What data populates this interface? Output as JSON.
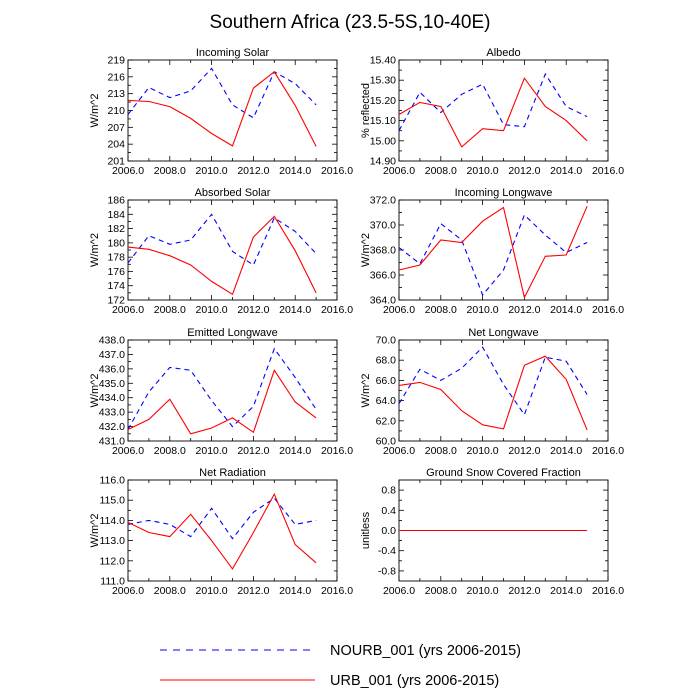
{
  "figure_title": "Southern Africa (23.5-5S,10-40E)",
  "colors": {
    "nourb": "#0000ff",
    "urb": "#ff0000",
    "axes": "#000000"
  },
  "legend": [
    {
      "label": "NOURB_001 (yrs 2006-2015)",
      "style": "dashed",
      "color": "#0000ff"
    },
    {
      "label": "URB_001 (yrs 2006-2015)",
      "style": "solid",
      "color": "#ff0000"
    }
  ],
  "chart_data": [
    {
      "type": "line",
      "title": "Incoming Solar",
      "ylabel": "W/m^2",
      "xlim": [
        2006,
        2016
      ],
      "xticks": [
        "2006.0",
        "2008.0",
        "2010.0",
        "2012.0",
        "2014.0",
        "2016.0"
      ],
      "ylim": [
        201,
        219
      ],
      "yticks": [
        "201",
        "204",
        "207",
        "210",
        "213",
        "216",
        "219"
      ],
      "x": [
        2006,
        2007,
        2008,
        2009,
        2010,
        2011,
        2012,
        2013,
        2014,
        2015
      ],
      "series": [
        {
          "name": "NOURB_001",
          "values": [
            209.3,
            214.1,
            212.3,
            213.5,
            217.5,
            211.0,
            208.7,
            216.9,
            214.8,
            211.0
          ]
        },
        {
          "name": "URB_001",
          "values": [
            211.8,
            211.6,
            210.7,
            208.6,
            205.9,
            203.7,
            214.0,
            216.9,
            210.9,
            203.6
          ]
        }
      ]
    },
    {
      "type": "line",
      "title": "Albedo",
      "ylabel": "% reflected",
      "xlim": [
        2006,
        2016
      ],
      "xticks": [
        "2006.0",
        "2008.0",
        "2010.0",
        "2012.0",
        "2014.0",
        "2016.0"
      ],
      "ylim": [
        14.9,
        15.4
      ],
      "yticks": [
        "14.90",
        "15.00",
        "15.10",
        "15.20",
        "15.30",
        "15.40"
      ],
      "x": [
        2006,
        2007,
        2008,
        2009,
        2010,
        2011,
        2012,
        2013,
        2014,
        2015
      ],
      "series": [
        {
          "name": "NOURB_001",
          "values": [
            15.05,
            15.24,
            15.14,
            15.23,
            15.28,
            15.08,
            15.07,
            15.33,
            15.17,
            15.12
          ]
        },
        {
          "name": "URB_001",
          "values": [
            15.13,
            15.19,
            15.17,
            14.97,
            15.06,
            15.05,
            15.31,
            15.17,
            15.1,
            15.0
          ]
        }
      ]
    },
    {
      "type": "line",
      "title": "Absorbed Solar",
      "ylabel": "W/m^2",
      "xlim": [
        2006,
        2016
      ],
      "xticks": [
        "2006.0",
        "2008.0",
        "2010.0",
        "2012.0",
        "2014.0",
        "2016.0"
      ],
      "ylim": [
        172,
        186
      ],
      "yticks": [
        "172",
        "174",
        "176",
        "178",
        "180",
        "182",
        "184",
        "186"
      ],
      "x": [
        2006,
        2007,
        2008,
        2009,
        2010,
        2011,
        2012,
        2013,
        2014,
        2015
      ],
      "series": [
        {
          "name": "NOURB_001",
          "values": [
            177.2,
            181.0,
            179.8,
            180.4,
            184.0,
            178.8,
            176.9,
            183.5,
            181.6,
            178.5
          ]
        },
        {
          "name": "URB_001",
          "values": [
            179.4,
            179.1,
            178.2,
            176.9,
            174.6,
            172.8,
            180.8,
            183.7,
            178.9,
            173.0
          ]
        }
      ]
    },
    {
      "type": "line",
      "title": "Incoming Longwave",
      "ylabel": "W/m^2",
      "xlim": [
        2006,
        2016
      ],
      "xticks": [
        "2006.0",
        "2008.0",
        "2010.0",
        "2012.0",
        "2014.0",
        "2016.0"
      ],
      "ylim": [
        364,
        372
      ],
      "yticks": [
        "364.0",
        "366.0",
        "368.0",
        "370.0",
        "372.0"
      ],
      "x": [
        2006,
        2007,
        2008,
        2009,
        2010,
        2011,
        2012,
        2013,
        2014,
        2015
      ],
      "series": [
        {
          "name": "NOURB_001",
          "values": [
            368.2,
            366.9,
            370.1,
            368.8,
            364.4,
            366.4,
            370.8,
            369.2,
            367.8,
            368.6
          ]
        },
        {
          "name": "URB_001",
          "values": [
            366.4,
            366.8,
            368.8,
            368.6,
            370.3,
            371.4,
            364.2,
            367.5,
            367.6,
            371.5
          ]
        }
      ]
    },
    {
      "type": "line",
      "title": "Emitted Longwave",
      "ylabel": "W/m^2",
      "xlim": [
        2006,
        2016
      ],
      "xticks": [
        "2006.0",
        "2008.0",
        "2010.0",
        "2012.0",
        "2014.0",
        "2016.0"
      ],
      "ylim": [
        431,
        438
      ],
      "yticks": [
        "431.0",
        "432.0",
        "433.0",
        "434.0",
        "435.0",
        "436.0",
        "437.0",
        "438.0"
      ],
      "x": [
        2006,
        2007,
        2008,
        2009,
        2010,
        2011,
        2012,
        2013,
        2014,
        2015
      ],
      "series": [
        {
          "name": "NOURB_001",
          "values": [
            431.8,
            434.4,
            436.1,
            435.9,
            433.8,
            432.0,
            433.4,
            437.4,
            435.4,
            433.2
          ]
        },
        {
          "name": "URB_001",
          "values": [
            431.8,
            432.5,
            433.9,
            431.5,
            431.9,
            432.6,
            431.6,
            435.9,
            433.7,
            432.6
          ]
        }
      ]
    },
    {
      "type": "line",
      "title": "Net Longwave",
      "ylabel": "W/m^2",
      "xlim": [
        2006,
        2016
      ],
      "xticks": [
        "2006.0",
        "2008.0",
        "2010.0",
        "2012.0",
        "2014.0",
        "2016.0"
      ],
      "ylim": [
        60,
        70
      ],
      "yticks": [
        "60.0",
        "62.0",
        "64.0",
        "66.0",
        "68.0",
        "70.0"
      ],
      "x": [
        2006,
        2007,
        2008,
        2009,
        2010,
        2011,
        2012,
        2013,
        2014,
        2015
      ],
      "series": [
        {
          "name": "NOURB_001",
          "values": [
            63.7,
            67.1,
            66.0,
            67.2,
            69.3,
            65.6,
            62.6,
            68.3,
            67.9,
            64.6
          ]
        },
        {
          "name": "URB_001",
          "values": [
            65.5,
            65.8,
            65.1,
            63.0,
            61.6,
            61.2,
            67.5,
            68.4,
            66.1,
            61.1
          ]
        }
      ]
    },
    {
      "type": "line",
      "title": "Net Radiation",
      "ylabel": "W/m^2",
      "xlim": [
        2006,
        2016
      ],
      "xticks": [
        "2006.0",
        "2008.0",
        "2010.0",
        "2012.0",
        "2014.0",
        "2016.0"
      ],
      "ylim": [
        111,
        116
      ],
      "yticks": [
        "111.0",
        "112.0",
        "113.0",
        "114.0",
        "115.0",
        "116.0"
      ],
      "x": [
        2006,
        2007,
        2008,
        2009,
        2010,
        2011,
        2012,
        2013,
        2014,
        2015
      ],
      "series": [
        {
          "name": "NOURB_001",
          "values": [
            113.8,
            114.0,
            113.8,
            113.2,
            114.6,
            113.1,
            114.4,
            115.1,
            113.8,
            114.0
          ]
        },
        {
          "name": "URB_001",
          "values": [
            113.9,
            113.4,
            113.2,
            114.3,
            113.0,
            111.6,
            113.4,
            115.3,
            112.8,
            111.9
          ]
        }
      ]
    },
    {
      "type": "line",
      "title": "Ground Snow Covered Fraction",
      "ylabel": "unitless",
      "xlim": [
        2006,
        2016
      ],
      "xticks": [
        "2006.0",
        "2008.0",
        "2010.0",
        "2012.0",
        "2014.0",
        "2016.0"
      ],
      "ylim": [
        -1,
        1
      ],
      "yticks": [
        "-0.8",
        "-0.4",
        "0.0",
        "0.4",
        "0.8"
      ],
      "ytickvalues": [
        -0.8,
        -0.4,
        0,
        0.4,
        0.8
      ],
      "x": [
        2006,
        2007,
        2008,
        2009,
        2010,
        2011,
        2012,
        2013,
        2014,
        2015
      ],
      "series": [
        {
          "name": "NOURB_001",
          "values": [
            0,
            0,
            0,
            0,
            0,
            0,
            0,
            0,
            0,
            0
          ]
        },
        {
          "name": "URB_001",
          "values": [
            0,
            0,
            0,
            0,
            0,
            0,
            0,
            0,
            0,
            0
          ]
        }
      ]
    }
  ]
}
